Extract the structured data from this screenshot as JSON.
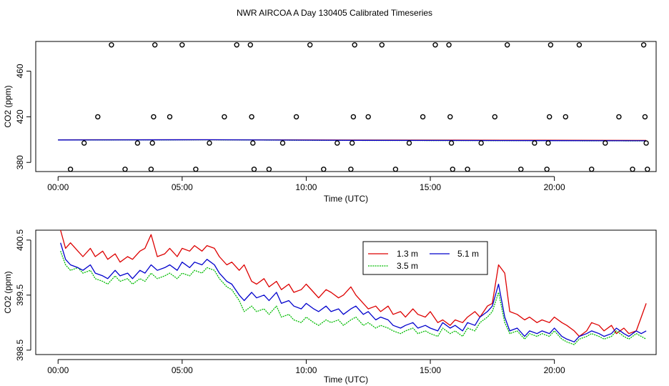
{
  "title": "NWR AIRCOA A  Day 130405  Calibrated Timeseries",
  "colors": {
    "s1": "#dd0000",
    "s2": "#00bb00",
    "s3": "#0000cc",
    "axis": "#000000"
  },
  "chart_data": [
    {
      "type": "scatter",
      "title": "",
      "xlabel": "Time (UTC)",
      "ylabel": "CO2 (ppm)",
      "xlim": [
        -0.9,
        24.1
      ],
      "ylim": [
        372,
        486
      ],
      "x_ticks": [
        0,
        5,
        10,
        15,
        20
      ],
      "x_tick_labels": [
        "00:00",
        "05:00",
        "10:00",
        "15:00",
        "20:00"
      ],
      "y_ticks": [
        380,
        420,
        460
      ],
      "y_tick_labels": [
        "380",
        "420",
        "460"
      ],
      "points": [
        {
          "x": 0.5,
          "y": 374
        },
        {
          "x": 1.05,
          "y": 397
        },
        {
          "x": 1.6,
          "y": 420
        },
        {
          "x": 2.15,
          "y": 483
        },
        {
          "x": 2.7,
          "y": 374
        },
        {
          "x": 3.2,
          "y": 397
        },
        {
          "x": 3.75,
          "y": 374
        },
        {
          "x": 3.8,
          "y": 397
        },
        {
          "x": 3.85,
          "y": 420
        },
        {
          "x": 3.9,
          "y": 483
        },
        {
          "x": 4.5,
          "y": 420
        },
        {
          "x": 5.0,
          "y": 483
        },
        {
          "x": 5.55,
          "y": 374
        },
        {
          "x": 6.1,
          "y": 397
        },
        {
          "x": 6.7,
          "y": 420
        },
        {
          "x": 7.2,
          "y": 483
        },
        {
          "x": 7.75,
          "y": 483
        },
        {
          "x": 7.8,
          "y": 420
        },
        {
          "x": 7.85,
          "y": 397
        },
        {
          "x": 7.9,
          "y": 374
        },
        {
          "x": 8.5,
          "y": 374
        },
        {
          "x": 9.05,
          "y": 397
        },
        {
          "x": 9.6,
          "y": 420
        },
        {
          "x": 10.15,
          "y": 483
        },
        {
          "x": 10.7,
          "y": 374
        },
        {
          "x": 11.25,
          "y": 397
        },
        {
          "x": 11.8,
          "y": 374
        },
        {
          "x": 11.85,
          "y": 397
        },
        {
          "x": 11.9,
          "y": 420
        },
        {
          "x": 11.95,
          "y": 483
        },
        {
          "x": 12.5,
          "y": 420
        },
        {
          "x": 13.05,
          "y": 483
        },
        {
          "x": 13.6,
          "y": 374
        },
        {
          "x": 14.15,
          "y": 397
        },
        {
          "x": 14.7,
          "y": 420
        },
        {
          "x": 15.2,
          "y": 483
        },
        {
          "x": 15.75,
          "y": 483
        },
        {
          "x": 15.8,
          "y": 420
        },
        {
          "x": 15.85,
          "y": 397
        },
        {
          "x": 15.9,
          "y": 374
        },
        {
          "x": 16.5,
          "y": 374
        },
        {
          "x": 17.05,
          "y": 397
        },
        {
          "x": 17.6,
          "y": 420
        },
        {
          "x": 18.1,
          "y": 483
        },
        {
          "x": 18.65,
          "y": 374
        },
        {
          "x": 19.2,
          "y": 397
        },
        {
          "x": 19.7,
          "y": 374
        },
        {
          "x": 19.75,
          "y": 397
        },
        {
          "x": 19.8,
          "y": 420
        },
        {
          "x": 19.85,
          "y": 483
        },
        {
          "x": 20.45,
          "y": 420
        },
        {
          "x": 21.0,
          "y": 483
        },
        {
          "x": 21.5,
          "y": 374
        },
        {
          "x": 22.05,
          "y": 397
        },
        {
          "x": 22.6,
          "y": 420
        },
        {
          "x": 23.15,
          "y": 374
        },
        {
          "x": 23.6,
          "y": 483
        },
        {
          "x": 23.65,
          "y": 420
        },
        {
          "x": 23.7,
          "y": 397
        },
        {
          "x": 23.75,
          "y": 374
        }
      ],
      "series": [
        {
          "name": "1.3 m",
          "color": "#dd0000",
          "x": [
            0,
            6,
            12,
            18,
            23.7
          ],
          "values": [
            399.8,
            399.9,
            399.6,
            399.5,
            399.3
          ]
        },
        {
          "name": "3.5 m",
          "color": "#00bb00",
          "x": [
            0,
            6,
            12,
            18,
            23.7
          ],
          "values": [
            399.6,
            399.8,
            399.3,
            399.1,
            398.9
          ]
        },
        {
          "name": "5.1 m",
          "color": "#0000cc",
          "x": [
            0,
            6,
            12,
            18,
            23.7
          ],
          "values": [
            399.7,
            399.9,
            399.4,
            399.2,
            399.0
          ]
        }
      ]
    },
    {
      "type": "line",
      "title": "",
      "xlabel": "Time (UTC)",
      "ylabel": "CO2 (ppm)",
      "xlim": [
        -0.9,
        24.1
      ],
      "ylim": [
        398.42,
        400.68
      ],
      "x_ticks": [
        0,
        5,
        10,
        15,
        20
      ],
      "x_tick_labels": [
        "00:00",
        "05:00",
        "10:00",
        "15:00",
        "20:00"
      ],
      "y_ticks": [
        398.5,
        399.5,
        400.5
      ],
      "y_tick_labels": [
        "398.5",
        "399.5",
        "400.5"
      ],
      "legend": {
        "position": "top-center",
        "entries": [
          "1.3 m",
          "5.1 m",
          "3.5 m"
        ]
      },
      "series": [
        {
          "name": "1.3 m",
          "color": "#dd0000",
          "x": [
            0.1,
            0.3,
            0.5,
            0.8,
            1.0,
            1.3,
            1.5,
            1.8,
            2.0,
            2.3,
            2.5,
            2.8,
            3.0,
            3.3,
            3.5,
            3.75,
            4.0,
            4.3,
            4.5,
            4.8,
            5.0,
            5.3,
            5.5,
            5.8,
            6.0,
            6.3,
            6.5,
            6.8,
            7.0,
            7.3,
            7.5,
            7.8,
            8.0,
            8.3,
            8.5,
            8.8,
            9.0,
            9.3,
            9.5,
            9.8,
            10.0,
            10.3,
            10.5,
            10.8,
            11.0,
            11.3,
            11.5,
            11.8,
            12.0,
            12.3,
            12.5,
            12.8,
            13.0,
            13.3,
            13.5,
            13.8,
            14.0,
            14.3,
            14.5,
            14.8,
            15.0,
            15.3,
            15.5,
            15.8,
            16.0,
            16.3,
            16.5,
            16.8,
            17.0,
            17.3,
            17.5,
            17.75,
            18.0,
            18.2,
            18.5,
            18.8,
            19.0,
            19.3,
            19.5,
            19.8,
            20.0,
            20.3,
            20.5,
            20.8,
            21.0,
            21.3,
            21.5,
            21.8,
            22.0,
            22.3,
            22.5,
            22.8,
            23.0,
            23.3,
            23.5,
            23.7
          ],
          "values": [
            400.68,
            400.35,
            400.45,
            400.3,
            400.2,
            400.35,
            400.2,
            400.3,
            400.15,
            400.25,
            400.1,
            400.2,
            400.15,
            400.3,
            400.35,
            400.6,
            400.2,
            400.25,
            400.35,
            400.2,
            400.35,
            400.3,
            400.4,
            400.3,
            400.4,
            400.35,
            400.2,
            400.05,
            400.1,
            399.95,
            400.05,
            399.75,
            399.7,
            399.8,
            399.65,
            399.75,
            399.6,
            399.7,
            399.55,
            399.6,
            399.7,
            399.55,
            399.45,
            399.6,
            399.55,
            399.45,
            399.5,
            399.65,
            399.5,
            399.35,
            399.25,
            399.3,
            399.2,
            399.3,
            399.15,
            399.2,
            399.1,
            399.25,
            399.15,
            399.1,
            399.2,
            399.0,
            399.05,
            398.95,
            399.05,
            399.0,
            399.1,
            399.2,
            399.1,
            399.3,
            399.35,
            400.05,
            399.9,
            399.2,
            399.15,
            399.05,
            399.1,
            399.0,
            399.05,
            399.0,
            399.1,
            399.0,
            398.95,
            398.85,
            398.75,
            398.85,
            399.0,
            398.95,
            398.85,
            398.95,
            398.8,
            398.9,
            398.8,
            398.85,
            399.1,
            399.35
          ]
        },
        {
          "name": "3.5 m",
          "color": "#00bb00",
          "x": [
            0.1,
            0.3,
            0.5,
            0.8,
            1.0,
            1.3,
            1.5,
            1.8,
            2.0,
            2.3,
            2.5,
            2.8,
            3.0,
            3.3,
            3.5,
            3.75,
            4.0,
            4.3,
            4.5,
            4.8,
            5.0,
            5.3,
            5.5,
            5.8,
            6.0,
            6.3,
            6.5,
            6.8,
            7.0,
            7.3,
            7.5,
            7.8,
            8.0,
            8.3,
            8.5,
            8.8,
            9.0,
            9.3,
            9.5,
            9.8,
            10.0,
            10.3,
            10.5,
            10.8,
            11.0,
            11.3,
            11.5,
            11.8,
            12.0,
            12.3,
            12.5,
            12.8,
            13.0,
            13.3,
            13.5,
            13.8,
            14.0,
            14.3,
            14.5,
            14.8,
            15.0,
            15.3,
            15.5,
            15.8,
            16.0,
            16.3,
            16.5,
            16.8,
            17.0,
            17.3,
            17.5,
            17.75,
            18.0,
            18.2,
            18.5,
            18.8,
            19.0,
            19.3,
            19.5,
            19.8,
            20.0,
            20.3,
            20.5,
            20.8,
            21.0,
            21.3,
            21.5,
            21.8,
            22.0,
            22.3,
            22.5,
            22.8,
            23.0,
            23.3,
            23.5,
            23.7
          ],
          "values": [
            400.3,
            400.05,
            399.95,
            400.0,
            399.9,
            399.95,
            399.8,
            399.75,
            399.7,
            399.85,
            399.75,
            399.8,
            399.7,
            399.8,
            399.75,
            399.9,
            399.8,
            399.85,
            399.9,
            399.8,
            399.9,
            399.85,
            399.95,
            399.9,
            400.0,
            399.95,
            399.8,
            399.65,
            399.6,
            399.4,
            399.2,
            399.3,
            399.2,
            399.25,
            399.15,
            399.3,
            399.1,
            399.15,
            399.05,
            399.0,
            399.1,
            399.0,
            398.95,
            399.05,
            399.0,
            399.05,
            398.95,
            399.05,
            399.1,
            398.95,
            399.0,
            398.9,
            398.95,
            398.9,
            398.85,
            398.8,
            398.85,
            398.9,
            398.8,
            398.85,
            398.8,
            398.75,
            398.9,
            398.8,
            398.85,
            398.75,
            398.9,
            398.85,
            399.0,
            399.1,
            399.2,
            399.55,
            399.0,
            398.8,
            398.85,
            398.7,
            398.8,
            398.75,
            398.8,
            398.75,
            398.85,
            398.7,
            398.65,
            398.6,
            398.7,
            398.75,
            398.8,
            398.75,
            398.7,
            398.75,
            398.85,
            398.75,
            398.7,
            398.8,
            398.75,
            398.7
          ]
        },
        {
          "name": "5.1 m",
          "color": "#0000cc",
          "x": [
            0.1,
            0.3,
            0.5,
            0.8,
            1.0,
            1.3,
            1.5,
            1.8,
            2.0,
            2.3,
            2.5,
            2.8,
            3.0,
            3.3,
            3.5,
            3.75,
            4.0,
            4.3,
            4.5,
            4.8,
            5.0,
            5.3,
            5.5,
            5.8,
            6.0,
            6.3,
            6.5,
            6.8,
            7.0,
            7.3,
            7.5,
            7.8,
            8.0,
            8.3,
            8.5,
            8.8,
            9.0,
            9.3,
            9.5,
            9.8,
            10.0,
            10.3,
            10.5,
            10.8,
            11.0,
            11.3,
            11.5,
            11.8,
            12.0,
            12.3,
            12.5,
            12.8,
            13.0,
            13.3,
            13.5,
            13.8,
            14.0,
            14.3,
            14.5,
            14.8,
            15.0,
            15.3,
            15.5,
            15.8,
            16.0,
            16.3,
            16.5,
            16.8,
            17.0,
            17.3,
            17.5,
            17.75,
            18.0,
            18.2,
            18.5,
            18.8,
            19.0,
            19.3,
            19.5,
            19.8,
            20.0,
            20.3,
            20.5,
            20.8,
            21.0,
            21.3,
            21.5,
            21.8,
            22.0,
            22.3,
            22.5,
            22.8,
            23.0,
            23.3,
            23.5,
            23.7
          ],
          "values": [
            400.45,
            400.15,
            400.05,
            400.0,
            399.95,
            400.05,
            399.9,
            399.85,
            399.8,
            399.95,
            399.85,
            399.9,
            399.8,
            399.95,
            399.9,
            400.05,
            399.95,
            400.0,
            400.05,
            399.95,
            400.1,
            400.0,
            400.1,
            400.05,
            400.15,
            400.05,
            399.9,
            399.75,
            399.7,
            399.5,
            399.4,
            399.55,
            399.45,
            399.5,
            399.4,
            399.55,
            399.35,
            399.4,
            399.3,
            399.25,
            399.35,
            399.25,
            399.2,
            399.3,
            399.2,
            399.25,
            399.15,
            399.25,
            399.3,
            399.15,
            399.2,
            399.05,
            399.1,
            399.05,
            398.95,
            398.9,
            398.95,
            399.0,
            398.9,
            398.95,
            398.9,
            398.85,
            399.0,
            398.9,
            398.95,
            398.85,
            399.0,
            398.95,
            399.1,
            399.2,
            399.3,
            399.7,
            399.1,
            398.85,
            398.9,
            398.75,
            398.85,
            398.8,
            398.85,
            398.8,
            398.9,
            398.75,
            398.7,
            398.65,
            398.75,
            398.8,
            398.85,
            398.8,
            398.75,
            398.8,
            398.9,
            398.8,
            398.75,
            398.85,
            398.8,
            398.85
          ]
        }
      ]
    }
  ]
}
